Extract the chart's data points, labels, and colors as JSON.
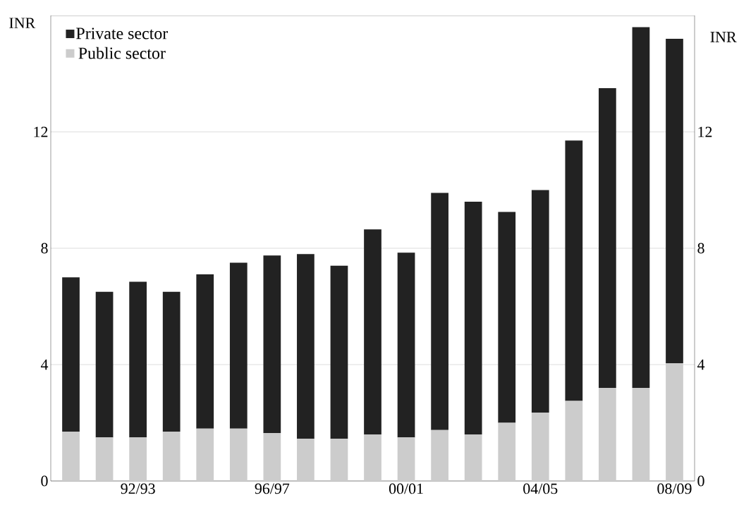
{
  "chart_data": {
    "type": "bar",
    "stacked": true,
    "ylabel": "INR",
    "y2label": "INR",
    "categories": [
      null,
      null,
      "92/93",
      null,
      null,
      null,
      "96/97",
      null,
      null,
      null,
      "00/01",
      null,
      null,
      null,
      "04/05",
      null,
      null,
      null,
      "08/09"
    ],
    "series": [
      {
        "name": "Public sector",
        "color": "#cccccc",
        "values": [
          1.7,
          1.5,
          1.5,
          1.7,
          1.8,
          1.8,
          1.65,
          1.45,
          1.45,
          1.6,
          1.5,
          1.75,
          1.6,
          2.0,
          2.35,
          2.75,
          3.2,
          3.2,
          4.05
        ]
      },
      {
        "name": "Private sector",
        "color": "#222222",
        "values": [
          5.3,
          5.0,
          5.35,
          4.8,
          5.3,
          5.7,
          6.1,
          6.35,
          5.95,
          7.05,
          6.35,
          8.15,
          8.0,
          7.25,
          7.65,
          8.95,
          10.3,
          12.4,
          11.15
        ]
      }
    ],
    "ylim": [
      0,
      16
    ],
    "yticks": [
      0,
      4,
      8,
      12
    ],
    "y2lim": [
      0,
      16
    ],
    "y2ticks": [
      0,
      4,
      8,
      12
    ],
    "grid": "y",
    "legend": "top left"
  }
}
